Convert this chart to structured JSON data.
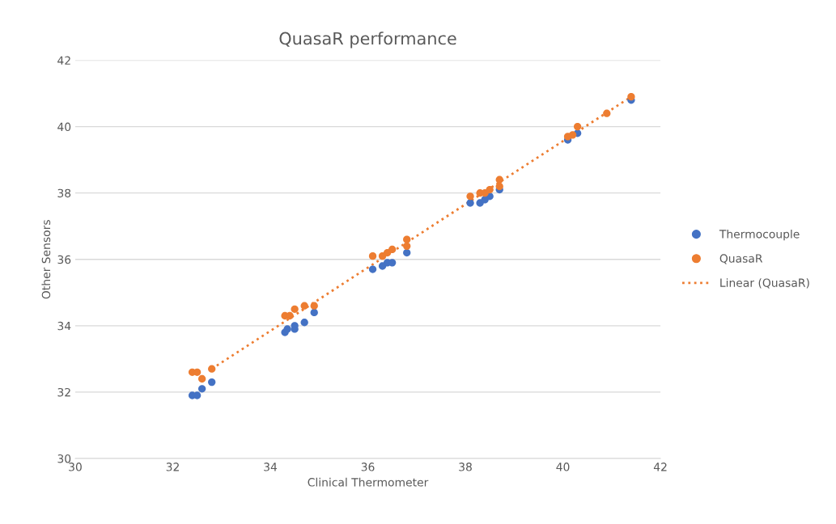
{
  "chart_data": {
    "type": "scatter",
    "title": "QuasaR performance",
    "xlabel": "Clinical Thermometer",
    "ylabel": "Other Sensors",
    "xlim": [
      30,
      42
    ],
    "xticks": [
      30,
      32,
      34,
      36,
      38,
      40,
      42
    ],
    "ylim": [
      30,
      42
    ],
    "yticks": [
      30,
      32,
      34,
      36,
      38,
      40,
      42
    ],
    "grid": "y",
    "legend": "right",
    "marker": "circle",
    "series": [
      {
        "name": "Thermocouple",
        "color": "#4472c4",
        "x": [
          32.4,
          32.5,
          32.6,
          32.8,
          34.3,
          34.35,
          34.5,
          34.5,
          34.7,
          34.9,
          36.1,
          36.3,
          36.4,
          36.5,
          36.8,
          38.1,
          38.3,
          38.4,
          38.5,
          38.7,
          40.1,
          40.25,
          40.3,
          41.4
        ],
        "values": [
          31.9,
          31.9,
          32.1,
          32.3,
          33.8,
          33.9,
          33.9,
          34.0,
          34.1,
          34.4,
          35.7,
          35.8,
          35.9,
          35.9,
          36.2,
          37.7,
          37.7,
          37.8,
          37.9,
          38.1,
          39.6,
          null,
          39.8,
          40.8
        ]
      },
      {
        "name": "QuasaR",
        "color": "#ed7d31",
        "x": [
          32.4,
          32.5,
          32.6,
          32.8,
          34.3,
          34.4,
          34.5,
          34.7,
          34.9,
          36.1,
          36.3,
          36.4,
          36.5,
          36.8,
          36.8,
          38.1,
          38.3,
          38.4,
          38.5,
          38.7,
          38.7,
          40.1,
          40.2,
          40.3,
          40.9,
          41.4
        ],
        "values": [
          32.6,
          32.6,
          32.4,
          32.7,
          34.3,
          34.3,
          34.5,
          34.6,
          34.6,
          36.1,
          36.1,
          36.2,
          36.3,
          36.6,
          36.4,
          37.9,
          38.0,
          38.0,
          38.1,
          38.4,
          38.2,
          39.7,
          39.75,
          40.0,
          40.4,
          40.9
        ]
      },
      {
        "name": "Linear (QuasaR)",
        "type": "line",
        "color": "#ed7d31",
        "line_style": "dotted",
        "marker": "none",
        "x": [
          32.8,
          41.4
        ],
        "values": [
          32.7,
          40.9
        ]
      }
    ]
  }
}
